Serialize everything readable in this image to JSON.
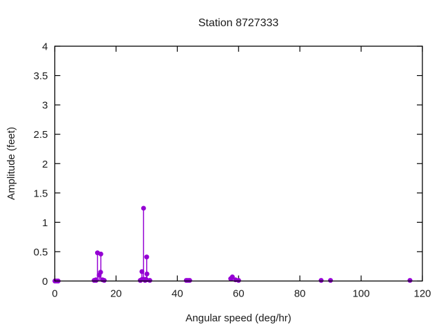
{
  "window": {
    "background_color": "#ffffff",
    "text_color": "#1a1a1a",
    "border_color": "#000000"
  },
  "chart_data": {
    "type": "scatter",
    "style": "impulses+points",
    "title": "Station 8727333",
    "xlabel": "Angular speed (deg/hr)",
    "ylabel": "Amplitude (feet)",
    "xlim": [
      0,
      120
    ],
    "ylim": [
      0,
      4
    ],
    "xticks": [
      0,
      20,
      40,
      60,
      80,
      100,
      120
    ],
    "xtick_labels": [
      "0",
      "20",
      "40",
      "60",
      "80",
      "100",
      "120"
    ],
    "yticks": [
      0,
      0.5,
      1,
      1.5,
      2,
      2.5,
      3,
      3.5,
      4
    ],
    "ytick_labels": [
      "0",
      "0.5",
      "1",
      "1.5",
      "2",
      "2.5",
      "3",
      "3.5",
      "4"
    ],
    "grid": false,
    "legend": "none",
    "marker_color": "#9400d3",
    "marker_radius_px": 3.5,
    "points": [
      {
        "x": 0.04,
        "y": 0.0
      },
      {
        "x": 0.08,
        "y": 0.0
      },
      {
        "x": 0.54,
        "y": 0.0
      },
      {
        "x": 1.02,
        "y": 0.0
      },
      {
        "x": 1.1,
        "y": 0.0
      },
      {
        "x": 12.85,
        "y": 0.01
      },
      {
        "x": 13.4,
        "y": 0.02
      },
      {
        "x": 13.47,
        "y": 0.01
      },
      {
        "x": 13.94,
        "y": 0.48
      },
      {
        "x": 14.49,
        "y": 0.1
      },
      {
        "x": 14.96,
        "y": 0.15
      },
      {
        "x": 15.04,
        "y": 0.46
      },
      {
        "x": 15.59,
        "y": 0.02
      },
      {
        "x": 16.14,
        "y": 0.01
      },
      {
        "x": 27.9,
        "y": 0.01
      },
      {
        "x": 27.97,
        "y": 0.01
      },
      {
        "x": 28.44,
        "y": 0.16
      },
      {
        "x": 28.51,
        "y": 0.03
      },
      {
        "x": 28.98,
        "y": 1.24
      },
      {
        "x": 29.46,
        "y": 0.01
      },
      {
        "x": 29.53,
        "y": 0.03
      },
      {
        "x": 29.96,
        "y": 0.02
      },
      {
        "x": 30.0,
        "y": 0.41
      },
      {
        "x": 30.08,
        "y": 0.12
      },
      {
        "x": 31.02,
        "y": 0.01
      },
      {
        "x": 42.93,
        "y": 0.01
      },
      {
        "x": 43.48,
        "y": 0.01
      },
      {
        "x": 44.03,
        "y": 0.01
      },
      {
        "x": 57.42,
        "y": 0.04
      },
      {
        "x": 57.97,
        "y": 0.07
      },
      {
        "x": 58.98,
        "y": 0.02
      },
      {
        "x": 60.0,
        "y": 0.01
      },
      {
        "x": 86.95,
        "y": 0.01
      },
      {
        "x": 90.0,
        "y": 0.01
      },
      {
        "x": 115.94,
        "y": 0.01
      }
    ]
  }
}
